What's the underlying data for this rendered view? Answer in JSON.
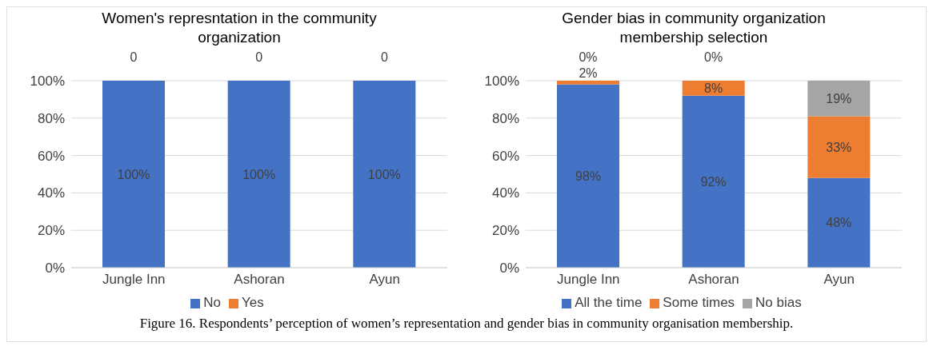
{
  "chart_data": [
    {
      "type": "bar",
      "title": "Women's represntation in the community organization",
      "categories": [
        "Jungle Inn",
        "Ashoran",
        "Ayun"
      ],
      "stacked": true,
      "series": [
        {
          "name": "No",
          "color": "#4472c4",
          "values": [
            100,
            100,
            100
          ],
          "value_labels": [
            "100%",
            "100%",
            "100%"
          ]
        },
        {
          "name": "Yes",
          "color": "#ed7d31",
          "values": [
            0,
            0,
            0
          ],
          "value_labels": [
            "0",
            "0",
            "0"
          ]
        }
      ],
      "ylim": [
        0,
        100
      ],
      "yticks": [
        {
          "value": 0,
          "label": "0%"
        },
        {
          "value": 20,
          "label": "20%"
        },
        {
          "value": 40,
          "label": "40%"
        },
        {
          "value": 60,
          "label": "60%"
        },
        {
          "value": 80,
          "label": "80%"
        },
        {
          "value": 100,
          "label": "100%"
        }
      ],
      "grid": "y",
      "legend": "bottom"
    },
    {
      "type": "bar",
      "title": "Gender bias in community organization membership selection",
      "categories": [
        "Jungle Inn",
        "Ashoran",
        "Ayun"
      ],
      "stacked": true,
      "series": [
        {
          "name": "All the time",
          "color": "#4472c4",
          "values": [
            98,
            92,
            48
          ],
          "value_labels": [
            "98%",
            "92%",
            "48%"
          ]
        },
        {
          "name": "Some times",
          "color": "#ed7d31",
          "values": [
            2,
            8,
            33
          ],
          "value_labels": [
            "2%",
            "8%",
            "33%"
          ]
        },
        {
          "name": "No bias",
          "color": "#a5a5a5",
          "values": [
            0,
            0,
            19
          ],
          "value_labels": [
            "0%",
            "0%",
            "19%"
          ]
        }
      ],
      "ylim": [
        0,
        100
      ],
      "yticks": [
        {
          "value": 0,
          "label": "0%"
        },
        {
          "value": 20,
          "label": "20%"
        },
        {
          "value": 40,
          "label": "40%"
        },
        {
          "value": 60,
          "label": "60%"
        },
        {
          "value": 80,
          "label": "80%"
        },
        {
          "value": 100,
          "label": "100%"
        }
      ],
      "grid": "y",
      "legend": "bottom",
      "annotations": [
        "Figure 16. Respondents’ perception of women’s representation and gender bias in community organisation membership."
      ]
    }
  ]
}
